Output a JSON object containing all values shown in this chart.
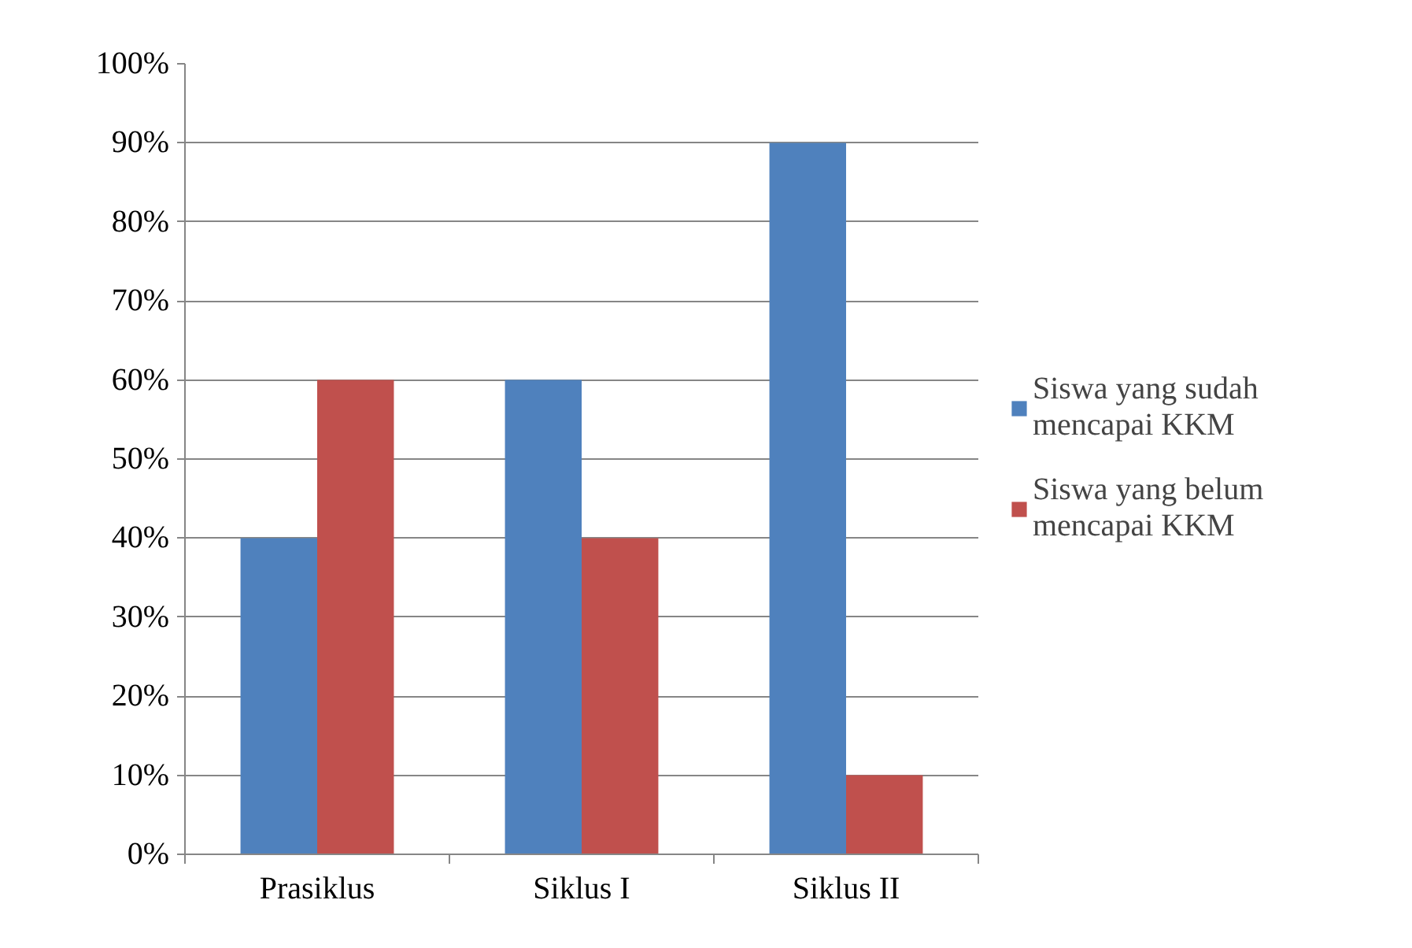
{
  "chart_data": {
    "type": "bar",
    "categories": [
      "Prasiklus",
      "Siklus I",
      "Siklus II"
    ],
    "series": [
      {
        "name": "Siswa yang sudah mencapai KKM",
        "color": "#4f81bd",
        "values": [
          40,
          60,
          90
        ]
      },
      {
        "name": "Siswa yang belum mencapai KKM",
        "color": "#c0504d",
        "values": [
          60,
          40,
          10
        ]
      }
    ],
    "ylim": [
      0,
      100
    ],
    "yticks": [
      {
        "value": 0,
        "label": "0%"
      },
      {
        "value": 10,
        "label": "10%"
      },
      {
        "value": 20,
        "label": "20%"
      },
      {
        "value": 30,
        "label": "30%"
      },
      {
        "value": 40,
        "label": "40%"
      },
      {
        "value": 50,
        "label": "50%"
      },
      {
        "value": 60,
        "label": "60%"
      },
      {
        "value": 70,
        "label": "70%"
      },
      {
        "value": 80,
        "label": "80%"
      },
      {
        "value": 90,
        "label": "90%"
      },
      {
        "value": 100,
        "label": "100%"
      }
    ],
    "grid": "y",
    "legend": "right"
  }
}
